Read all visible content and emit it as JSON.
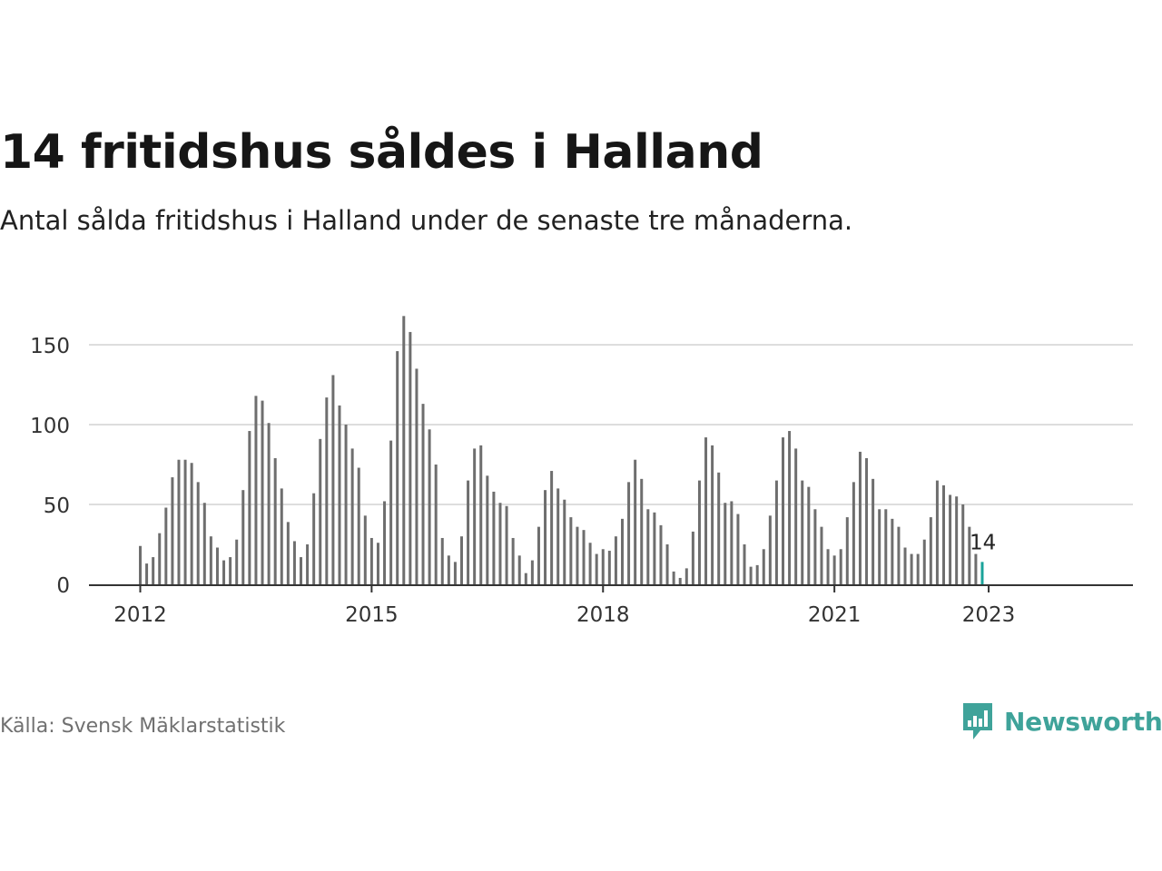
{
  "title": "14 fritidshus såldes i Halland",
  "subtitle": "Antal sålda fritidshus i Halland under de senaste tre månaderna.",
  "source": "Källa: Svensk Mäklarstatistik",
  "brand": {
    "name": "Newsworthy",
    "logo_icon": "newsworthy-logo-icon",
    "color": "#3fa39a"
  },
  "colors": {
    "bar": "#6e6e6e",
    "highlight": "#1aa39a",
    "grid": "#dddddd",
    "axis": "#333333"
  },
  "chart_data": {
    "type": "bar",
    "title": "14 fritidshus såldes i Halland",
    "x_unit": "month",
    "x_start": "2012-01",
    "x_end": "2023-01",
    "ylim": [
      0,
      170
    ],
    "yticks": [
      0,
      50,
      100,
      150
    ],
    "xticks": [
      "2012",
      "2015",
      "2018",
      "2021",
      "2023"
    ],
    "grid": true,
    "legend": "none",
    "highlight_label": "14",
    "values": [
      24,
      13,
      17,
      32,
      48,
      67,
      78,
      78,
      76,
      64,
      51,
      30,
      23,
      15,
      17,
      28,
      59,
      96,
      118,
      115,
      101,
      79,
      60,
      39,
      27,
      17,
      25,
      57,
      91,
      117,
      131,
      112,
      100,
      85,
      73,
      43,
      29,
      26,
      52,
      90,
      146,
      168,
      158,
      135,
      113,
      97,
      75,
      29,
      18,
      14,
      30,
      65,
      85,
      87,
      68,
      58,
      51,
      49,
      29,
      18,
      7,
      15,
      36,
      59,
      71,
      60,
      53,
      42,
      36,
      34,
      26,
      19,
      22,
      21,
      30,
      41,
      64,
      78,
      66,
      47,
      45,
      37,
      25,
      8,
      4,
      10,
      33,
      65,
      92,
      87,
      70,
      51,
      52,
      44,
      25,
      11,
      12,
      22,
      43,
      65,
      92,
      96,
      85,
      65,
      61,
      47,
      36,
      22,
      18,
      22,
      42,
      64,
      83,
      79,
      66,
      47,
      47,
      41,
      36,
      23,
      19,
      19,
      28,
      42,
      65,
      62,
      56,
      55,
      50,
      36,
      19,
      14
    ]
  }
}
